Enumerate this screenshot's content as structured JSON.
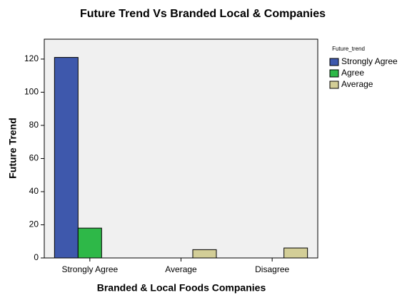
{
  "chart_data": {
    "type": "grouped_bar",
    "title": "Future Trend Vs Branded  Local & Companies",
    "x_label": "Branded & Local Foods Companies",
    "y_label": "Future Trend",
    "legend_title": "Future_trend",
    "categories": [
      "Strongly Agree",
      "Average",
      "Disagree"
    ],
    "series": [
      {
        "name": "Strongly Agree",
        "color": "#3e58ac",
        "values": [
          121,
          0,
          0
        ]
      },
      {
        "name": "Agree",
        "color": "#2eb848",
        "values": [
          18,
          0,
          0
        ]
      },
      {
        "name": "Average",
        "color": "#d3ce97",
        "values": [
          0,
          5,
          6
        ]
      }
    ],
    "ylim": [
      0,
      132
    ],
    "yticks": [
      0,
      20,
      40,
      60,
      80,
      100,
      120
    ],
    "legend": "right"
  }
}
